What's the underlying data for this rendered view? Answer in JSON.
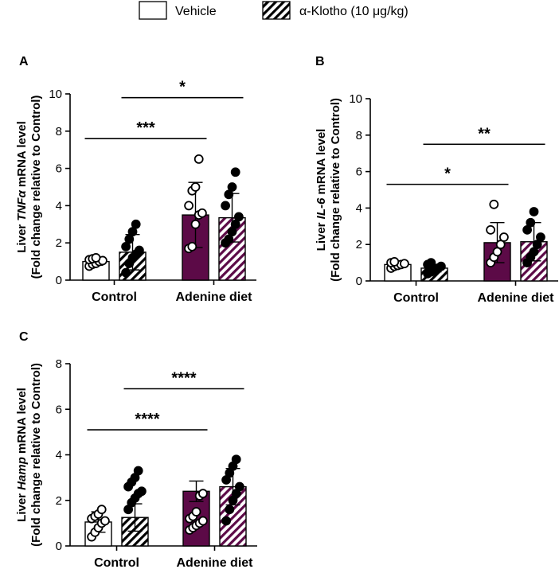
{
  "legend": {
    "items": [
      {
        "label": "Vehicle",
        "style": "open"
      },
      {
        "label": "α-Klotho (10 μg/kg)",
        "style": "hatched"
      }
    ]
  },
  "colors": {
    "control_fill": "#ffffff",
    "adenine_fill": "#5c0a47",
    "hatch_stripe": "#5c0a47",
    "control_hatch_stripe": "#000000",
    "axis": "#000000"
  },
  "chart_data": [
    {
      "panel": "A",
      "type": "bar",
      "ylabel_pre": "Liver ",
      "ylabel_gene": "TNFα",
      "ylabel_post": " mRNA level",
      "ylabel_line2": "(Fold change relative to Control)",
      "ylim": [
        0,
        10
      ],
      "yticks": [
        0,
        2,
        4,
        6,
        8,
        10
      ],
      "groups": [
        "Control",
        "Adenine diet"
      ],
      "series": [
        {
          "name": "Vehicle",
          "values": [
            1.0,
            3.5
          ],
          "sd": [
            0.2,
            1.75
          ]
        },
        {
          "name": "α-Klotho (10 μg/kg)",
          "values": [
            1.5,
            3.35
          ],
          "sd": [
            0.95,
            1.3
          ]
        }
      ],
      "points": [
        [
          [
            0.75,
            0.85,
            0.9,
            1.0,
            1.05,
            1.1,
            1.15,
            1.2
          ],
          [
            0.4,
            0.9,
            1.2,
            1.4,
            1.6,
            1.8,
            2.2,
            2.6,
            3.0
          ]
        ],
        [
          [
            1.7,
            1.8,
            3.0,
            3.5,
            3.6,
            4.0,
            4.8,
            5.0,
            6.5
          ],
          [
            2.0,
            2.2,
            2.6,
            3.0,
            3.4,
            4.0,
            4.6,
            5.0,
            5.8
          ]
        ]
      ],
      "significance": [
        {
          "label": "***",
          "from": [
            0,
            0
          ],
          "to": [
            1,
            0
          ],
          "y": 7.6
        },
        {
          "label": "*",
          "from": [
            0,
            1
          ],
          "to": [
            1,
            1
          ],
          "y": 9.8
        }
      ]
    },
    {
      "panel": "B",
      "type": "bar",
      "ylabel_pre": "Liver ",
      "ylabel_gene": "IL-6",
      "ylabel_post": " mRNA level",
      "ylabel_line2": "(Fold change relative to Control)",
      "ylim": [
        0,
        10
      ],
      "yticks": [
        0,
        2,
        4,
        6,
        8,
        10
      ],
      "groups": [
        "Control",
        "Adenine diet"
      ],
      "series": [
        {
          "name": "Vehicle",
          "values": [
            0.9,
            2.1
          ],
          "sd": [
            0.15,
            1.1
          ]
        },
        {
          "name": "α-Klotho (10 μg/kg)",
          "values": [
            0.7,
            2.15
          ],
          "sd": [
            0.2,
            1.05
          ]
        }
      ],
      "points": [
        [
          [
            0.7,
            0.8,
            0.85,
            0.9,
            0.95,
            1.0,
            1.05
          ],
          [
            0.4,
            0.5,
            0.6,
            0.7,
            0.8,
            0.9,
            1.0
          ]
        ],
        [
          [
            1.0,
            1.3,
            1.6,
            2.0,
            2.4,
            2.8,
            4.2
          ],
          [
            1.0,
            1.3,
            1.6,
            2.0,
            2.4,
            2.8,
            3.2,
            3.8
          ]
        ]
      ],
      "significance": [
        {
          "label": "*",
          "from": [
            0,
            0
          ],
          "to": [
            1,
            0
          ],
          "y": 5.3
        },
        {
          "label": "**",
          "from": [
            0,
            1
          ],
          "to": [
            1,
            1
          ],
          "y": 7.5
        }
      ]
    },
    {
      "panel": "C",
      "type": "bar",
      "ylabel_pre": "Liver ",
      "ylabel_gene": "Hamp",
      "ylabel_post": " mRNA level",
      "ylabel_line2": "(Fold change relative to Control)",
      "ylim": [
        0,
        8
      ],
      "yticks": [
        0,
        2,
        4,
        6,
        8
      ],
      "groups": [
        "Control",
        "Adenine diet"
      ],
      "series": [
        {
          "name": "Vehicle",
          "values": [
            1.05,
            2.4
          ],
          "sd": [
            0.45,
            0.45
          ]
        },
        {
          "name": "α-Klotho (10 μg/kg)",
          "values": [
            1.25,
            2.6
          ],
          "sd": [
            0.6,
            0.8
          ]
        }
      ],
      "points": [
        [
          [
            0.4,
            0.6,
            0.8,
            1.0,
            1.1,
            1.2,
            1.3,
            1.4,
            1.6
          ],
          [
            1.6,
            1.9,
            2.1,
            2.3,
            2.4,
            2.6,
            2.8,
            3.0,
            3.3
          ]
        ],
        [
          [
            0.7,
            0.8,
            0.9,
            1.0,
            1.1,
            1.2,
            1.3,
            1.5,
            2.2,
            2.3
          ],
          [
            1.1,
            1.6,
            2.0,
            2.3,
            2.6,
            2.9,
            3.2,
            3.5,
            3.8
          ]
        ]
      ],
      "significance": [
        {
          "label": "****",
          "from": [
            0,
            0
          ],
          "to": [
            1,
            0
          ],
          "y": 5.1
        },
        {
          "label": "****",
          "from": [
            0,
            1
          ],
          "to": [
            1,
            1
          ],
          "y": 6.9
        }
      ]
    }
  ]
}
